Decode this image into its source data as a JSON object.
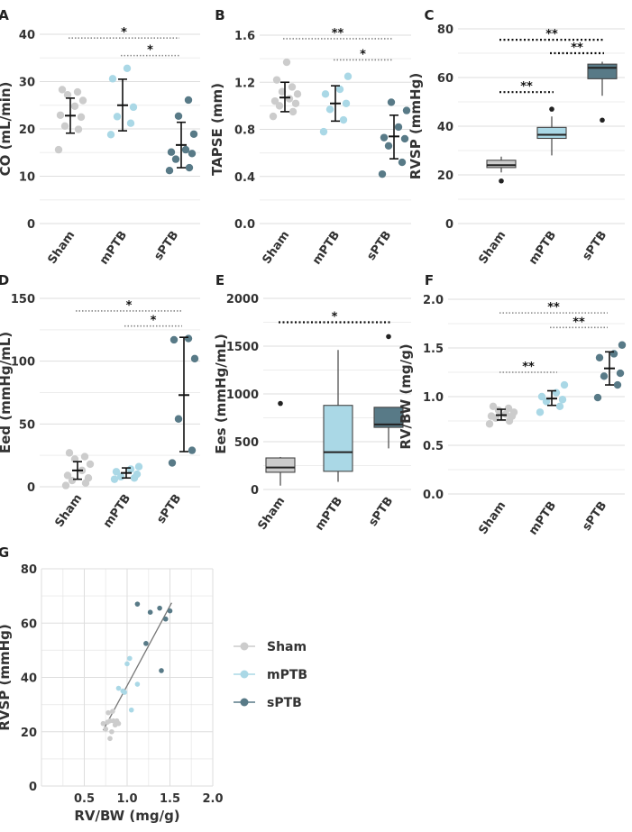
{
  "colors": {
    "Sham": "#cccccc",
    "mPTB": "#aad8e6",
    "sPTB": "#587a87"
  },
  "legend": [
    {
      "label": "Sham",
      "color": "#cccccc"
    },
    {
      "label": "mPTB",
      "color": "#aad8e6"
    },
    {
      "label": "sPTB",
      "color": "#587a87"
    }
  ],
  "chart_data": [
    {
      "panel": "A",
      "type": "scatter",
      "ylabel": "CO (mL/min)",
      "categories": [
        "Sham",
        "mPTB",
        "sPTB"
      ],
      "ylim": [
        0,
        40
      ],
      "yticks": [
        0,
        10,
        20,
        30,
        40
      ],
      "ytick_labels": [
        "0",
        "10",
        "20",
        "30",
        "40"
      ],
      "points": [
        [
          15.6,
          19.9,
          20.6,
          22.5,
          22.9,
          24.8,
          26.0,
          27.2,
          27.8,
          28.3
        ],
        [
          18.8,
          21.2,
          22.6,
          24.6,
          30.6,
          32.8
        ],
        [
          11.2,
          11.8,
          13.6,
          14.8,
          15.1,
          15.6,
          18.9,
          22.7,
          26.1
        ]
      ],
      "summary": [
        {
          "mean": 22.8,
          "low": 19.1,
          "high": 26.5
        },
        {
          "mean": 25.0,
          "low": 19.6,
          "high": 30.5
        },
        {
          "mean": 16.6,
          "low": 11.8,
          "high": 21.4
        }
      ],
      "significance": [
        {
          "from": "Sham",
          "to": "sPTB",
          "y": 39.2,
          "label": "*",
          "style": "dotted"
        },
        {
          "from": "mPTB",
          "to": "sPTB",
          "y": 35.5,
          "label": "*",
          "style": "dotted"
        }
      ]
    },
    {
      "panel": "B",
      "type": "scatter",
      "ylabel": "TAPSE (mm)",
      "categories": [
        "Sham",
        "mPTB",
        "sPTB"
      ],
      "ylim": [
        0,
        1.6
      ],
      "yticks": [
        0,
        0.4,
        0.8,
        1.2,
        1.6
      ],
      "ytick_labels": [
        "0.0",
        "0.4",
        "0.8",
        "1.2",
        "1.6"
      ],
      "points": [
        [
          0.91,
          0.95,
          1.0,
          1.02,
          1.04,
          1.06,
          1.1,
          1.12,
          1.16,
          1.22,
          1.37
        ],
        [
          0.78,
          0.88,
          0.97,
          1.02,
          1.1,
          1.14,
          1.25
        ],
        [
          0.42,
          0.52,
          0.66,
          0.72,
          0.73,
          0.82,
          0.96,
          1.03
        ]
      ],
      "summary": [
        {
          "mean": 1.07,
          "low": 0.95,
          "high": 1.2
        },
        {
          "mean": 1.02,
          "low": 0.87,
          "high": 1.17
        },
        {
          "mean": 0.74,
          "low": 0.55,
          "high": 0.92
        }
      ],
      "significance": [
        {
          "from": "Sham",
          "to": "sPTB",
          "y": 1.57,
          "label": "**",
          "style": "dotted"
        },
        {
          "from": "mPTB",
          "to": "sPTB",
          "y": 1.39,
          "label": "*",
          "style": "dotted"
        }
      ]
    },
    {
      "panel": "C",
      "type": "box",
      "ylabel": "RVSP (mmHg)",
      "categories": [
        "Sham",
        "mPTB",
        "sPTB"
      ],
      "ylim": [
        0,
        80
      ],
      "yticks": [
        0,
        20,
        40,
        60,
        80
      ],
      "ytick_labels": [
        "0",
        "20",
        "40",
        "60",
        "80"
      ],
      "boxes": [
        {
          "q1": 23.0,
          "median": 24.0,
          "q3": 26.0,
          "whisker_low": 21.0,
          "whisker_high": 27.5,
          "outliers": [
            17.5
          ]
        },
        {
          "q1": 35.0,
          "median": 36.5,
          "q3": 39.5,
          "whisker_low": 28.0,
          "whisker_high": 44.0,
          "outliers": [
            47.0
          ]
        },
        {
          "q1": 59.5,
          "median": 64.0,
          "q3": 65.5,
          "whisker_low": 52.5,
          "whisker_high": 66.5,
          "outliers": [
            42.5
          ]
        }
      ],
      "significance": [
        {
          "from": "Sham",
          "to": "sPTB",
          "y": 75.5,
          "label": "**",
          "style": "solid"
        },
        {
          "from": "mPTB",
          "to": "sPTB",
          "y": 70.0,
          "label": "**",
          "style": "solid"
        },
        {
          "from": "Sham",
          "to": "mPTB",
          "y": 54.0,
          "label": "**",
          "style": "solid"
        }
      ]
    },
    {
      "panel": "D",
      "type": "scatter",
      "ylabel": "Eed (mmHg/mL)",
      "categories": [
        "Sham",
        "mPTB",
        "sPTB"
      ],
      "ylim": [
        0,
        150
      ],
      "yticks": [
        0,
        50,
        100,
        150
      ],
      "ytick_labels": [
        "0",
        "50",
        "100",
        "150"
      ],
      "points": [
        [
          1,
          3,
          5,
          7,
          9,
          13,
          18,
          22,
          24,
          27
        ],
        [
          6,
          7,
          8,
          10,
          12,
          14,
          16
        ],
        [
          19,
          29,
          54,
          102,
          117,
          118
        ]
      ],
      "summary": [
        {
          "mean": 13,
          "low": 6,
          "high": 20
        },
        {
          "mean": 11,
          "low": 7,
          "high": 15
        },
        {
          "mean": 73,
          "low": 28,
          "high": 119
        }
      ],
      "significance": [
        {
          "from": "Sham",
          "to": "sPTB",
          "y": 140,
          "label": "*",
          "style": "dotted"
        },
        {
          "from": "mPTB",
          "to": "sPTB",
          "y": 128,
          "label": "*",
          "style": "dotted"
        }
      ]
    },
    {
      "panel": "E",
      "type": "box",
      "ylabel": "Ees (mmHg/mL)",
      "categories": [
        "Sham",
        "mPTB",
        "sPTB"
      ],
      "ylim": [
        0,
        2000
      ],
      "yticks": [
        0,
        500,
        1000,
        1500,
        2000
      ],
      "ytick_labels": [
        "0",
        "500",
        "1000",
        "1500",
        "2000"
      ],
      "boxes": [
        {
          "q1": 180,
          "median": 230,
          "q3": 330,
          "whisker_low": 40,
          "whisker_high": 340,
          "outliers": [
            900
          ]
        },
        {
          "q1": 190,
          "median": 390,
          "q3": 880,
          "whisker_low": 80,
          "whisker_high": 1460,
          "outliers": []
        },
        {
          "q1": 650,
          "median": 680,
          "q3": 860,
          "whisker_low": 430,
          "whisker_high": 860,
          "outliers": [
            1600
          ]
        }
      ],
      "significance": [
        {
          "from": "Sham",
          "to": "sPTB",
          "y": 1750,
          "label": "*",
          "style": "solid"
        }
      ]
    },
    {
      "panel": "F",
      "type": "scatter",
      "ylabel": "RV/BW (mg/g)",
      "categories": [
        "Sham",
        "mPTB",
        "sPTB"
      ],
      "ylim": [
        0,
        2.0
      ],
      "yticks": [
        0,
        0.5,
        1.0,
        1.5,
        2.0
      ],
      "ytick_labels": [
        "0.0",
        "0.5",
        "1.0",
        "1.5",
        "2.0"
      ],
      "points": [
        [
          0.72,
          0.75,
          0.78,
          0.8,
          0.8,
          0.82,
          0.84,
          0.86,
          0.88,
          0.9
        ],
        [
          0.84,
          0.9,
          0.95,
          0.97,
          1.0,
          1.04,
          1.12
        ],
        [
          0.99,
          1.12,
          1.21,
          1.24,
          1.4,
          1.44,
          1.53
        ]
      ],
      "summary": [
        {
          "mean": 0.81,
          "low": 0.76,
          "high": 0.87
        },
        {
          "mean": 0.98,
          "low": 0.91,
          "high": 1.06
        },
        {
          "mean": 1.29,
          "low": 1.12,
          "high": 1.46
        }
      ],
      "significance": [
        {
          "from": "Sham",
          "to": "sPTB",
          "y": 1.86,
          "label": "**",
          "style": "dotted"
        },
        {
          "from": "mPTB",
          "to": "sPTB",
          "y": 1.71,
          "label": "**",
          "style": "dotted"
        },
        {
          "from": "Sham",
          "to": "mPTB",
          "y": 1.25,
          "label": "**",
          "style": "dotted"
        }
      ]
    },
    {
      "panel": "G",
      "type": "scatter",
      "xlabel": "RV/BW (mg/g)",
      "ylabel": "RVSP (mmHg)",
      "xlim": [
        0,
        2.0
      ],
      "xticks": [
        0.5,
        1.0,
        1.5,
        2.0
      ],
      "xtick_labels": [
        "0.5",
        "1.0",
        "1.5",
        "2.0"
      ],
      "ylim": [
        0,
        80
      ],
      "yticks": [
        0,
        20,
        40,
        60,
        80
      ],
      "ytick_labels": [
        "0",
        "20",
        "40",
        "60",
        "80"
      ],
      "series": [
        {
          "name": "Sham",
          "x": [
            0.72,
            0.75,
            0.78,
            0.8,
            0.8,
            0.82,
            0.84,
            0.86,
            0.88,
            0.9,
            0.77,
            0.83
          ],
          "y": [
            23,
            21,
            27,
            24,
            17.5,
            20,
            24,
            22.5,
            24,
            23,
            23.5,
            27.5
          ]
        },
        {
          "name": "mPTB",
          "x": [
            0.9,
            0.95,
            0.97,
            1.0,
            1.03,
            1.05,
            1.12
          ],
          "y": [
            36,
            35,
            34.5,
            45,
            47,
            28,
            37.5
          ]
        },
        {
          "name": "sPTB",
          "x": [
            1.12,
            1.22,
            1.27,
            1.38,
            1.4,
            1.45,
            1.5
          ],
          "y": [
            67,
            52.5,
            64,
            65.5,
            42.5,
            61.5,
            64.5
          ]
        }
      ],
      "fit_line": {
        "x": [
          0.72,
          1.52
        ],
        "y": [
          20.5,
          67.5
        ]
      }
    }
  ]
}
